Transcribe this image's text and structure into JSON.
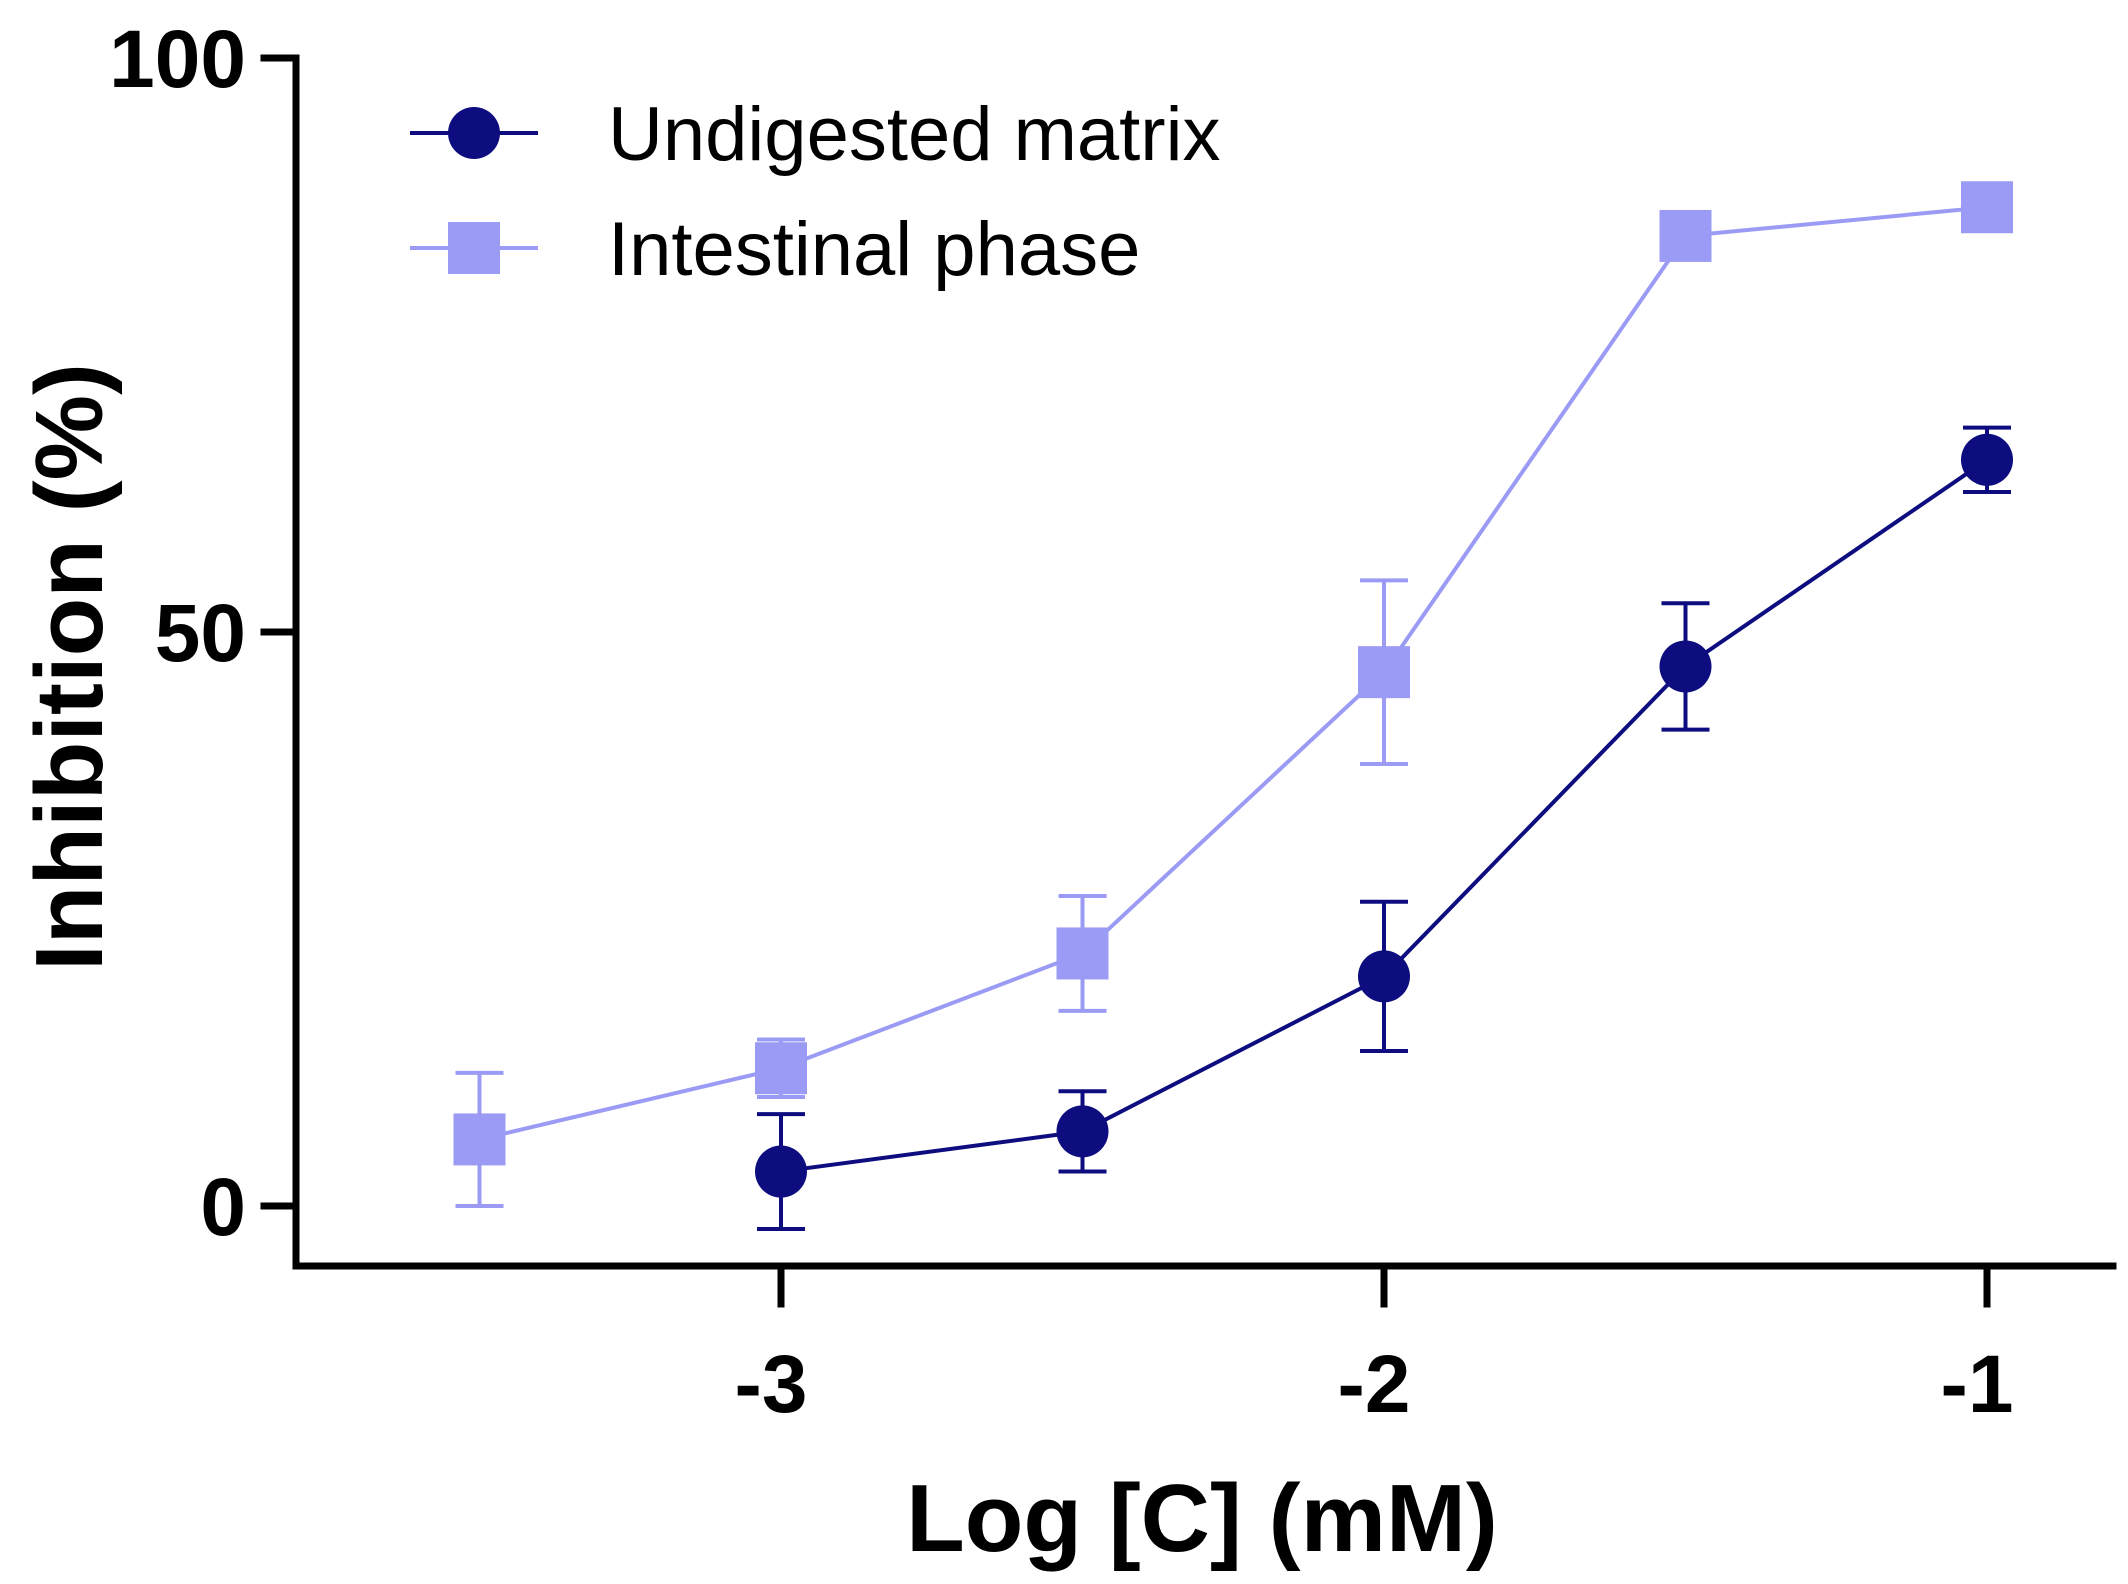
{
  "chart_data": {
    "type": "line",
    "title": "",
    "xlabel": "Log [C] (mM)",
    "ylabel": "Inhibition (%)",
    "xlim": [
      -3.8,
      -0.8
    ],
    "ylim": [
      -5,
      100
    ],
    "xticks": [
      {
        "value": -3,
        "label": "-3"
      },
      {
        "value": -2,
        "label": "-2"
      },
      {
        "value": -1,
        "label": "-1"
      }
    ],
    "yticks": [
      {
        "value": 0,
        "label": "0"
      },
      {
        "value": 50,
        "label": "50"
      },
      {
        "value": 100,
        "label": "100"
      }
    ],
    "grid": false,
    "legend_position": "top-left",
    "series": [
      {
        "name": "Undigested matrix",
        "marker": "circle",
        "color": "#0d0d80",
        "x": [
          -3,
          -2.5,
          -2,
          -1.5,
          -1
        ],
        "y": [
          3,
          6.5,
          20,
          47,
          65
        ],
        "err": [
          5,
          3.5,
          6.5,
          5.5,
          2.8
        ]
      },
      {
        "name": "Intestinal phase",
        "marker": "square",
        "color": "#9b9bf5",
        "x": [
          -3.5,
          -3,
          -2.5,
          -2,
          -1.5,
          -1
        ],
        "y": [
          5.8,
          12,
          22,
          46.5,
          84.5,
          87
        ],
        "err": [
          5.8,
          2.5,
          5,
          8,
          0,
          0
        ]
      }
    ]
  }
}
